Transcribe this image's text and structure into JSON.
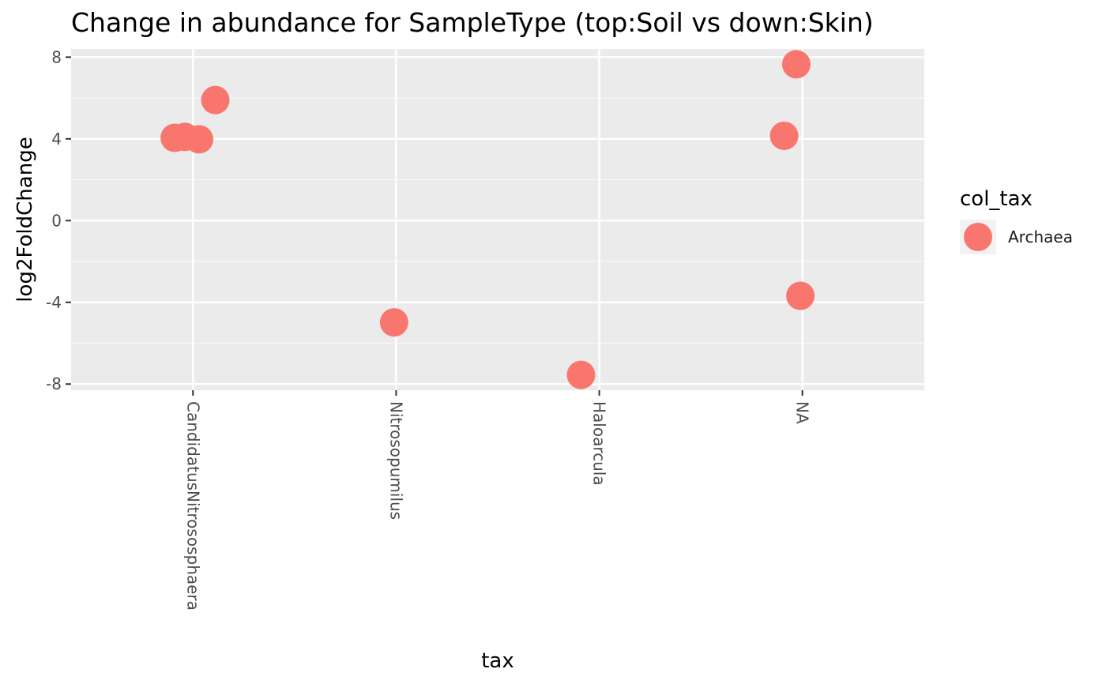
{
  "chart_data": {
    "type": "scatter",
    "title": "Change in abundance for SampleType (top:Soil vs down:Skin)",
    "xlabel": "tax",
    "ylabel": "log2FoldChange",
    "categories": [
      "CandidatusNitrososphaera",
      "Nitrosopumilus",
      "Haloarcula",
      "NA"
    ],
    "ylim": [
      -8.3,
      8.4
    ],
    "yticks": [
      8,
      4,
      0,
      -4,
      -8
    ],
    "ytick_labels": [
      "8",
      "4",
      "0",
      "-4",
      "-8"
    ],
    "grid": true,
    "legend": {
      "title": "col_tax",
      "placement": "right",
      "entries": [
        {
          "label": "Archaea",
          "color": "#F8766D"
        }
      ]
    },
    "series": [
      {
        "name": "Archaea",
        "color": "#F8766D",
        "points": [
          {
            "x": "CandidatusNitrososphaera",
            "jitter": -0.09,
            "y": 4.05
          },
          {
            "x": "CandidatusNitrososphaera",
            "jitter": -0.04,
            "y": 4.1
          },
          {
            "x": "CandidatusNitrososphaera",
            "jitter": 0.03,
            "y": 3.98
          },
          {
            "x": "CandidatusNitrososphaera",
            "jitter": 0.11,
            "y": 5.9
          },
          {
            "x": "Nitrosopumilus",
            "jitter": -0.01,
            "y": -4.98
          },
          {
            "x": "Haloarcula",
            "jitter": -0.09,
            "y": -7.55
          },
          {
            "x": "NA",
            "jitter": -0.09,
            "y": 4.15
          },
          {
            "x": "NA",
            "jitter": -0.03,
            "y": 7.65
          },
          {
            "x": "NA",
            "jitter": -0.01,
            "y": -3.68
          }
        ]
      }
    ]
  },
  "colors": {
    "panel_background": "#EBEBEB",
    "grid_major": "#FFFFFF",
    "point": "#F8766D"
  }
}
